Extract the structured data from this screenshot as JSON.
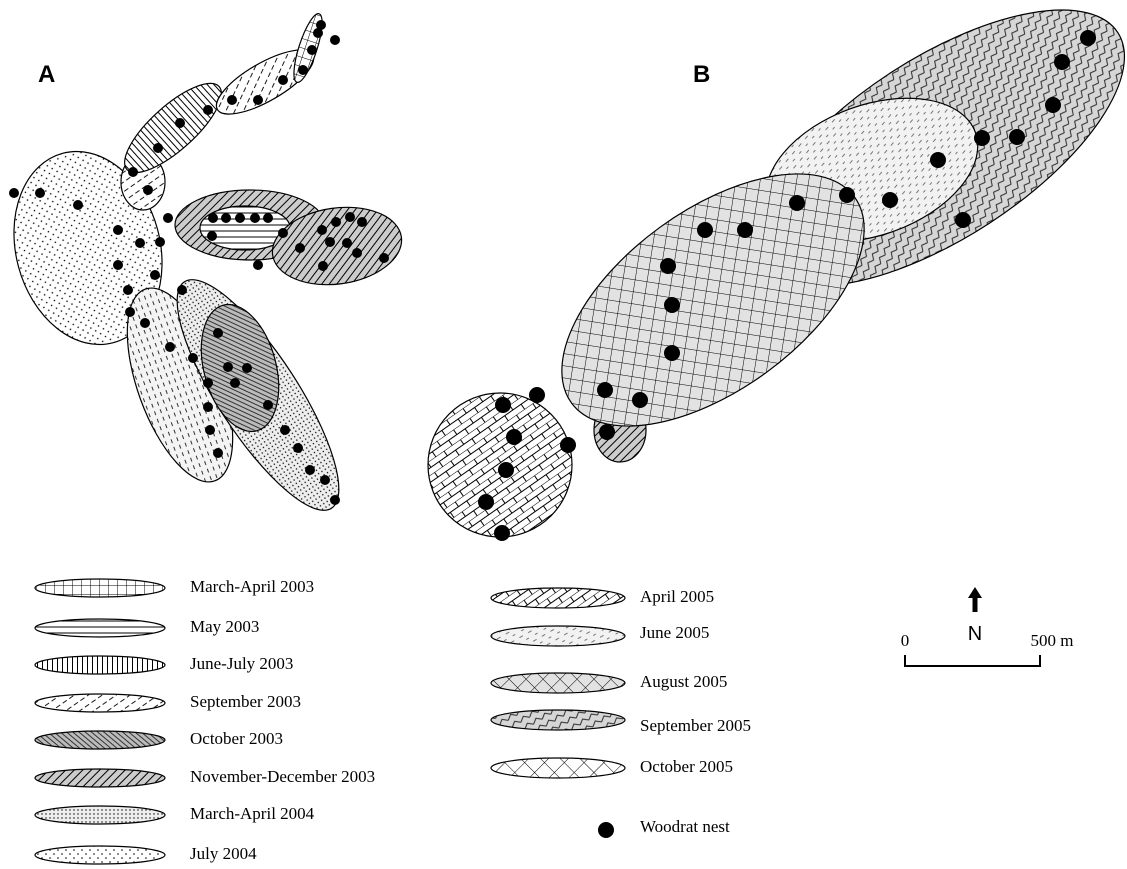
{
  "panels": {
    "a": {
      "label": "A"
    },
    "b": {
      "label": "B"
    }
  },
  "legend_a": [
    "March-April  2003",
    "May 2003",
    "June-July  2003",
    "September  2003",
    "October 2003",
    "November-December   2003",
    "March-April  2004",
    "July  2004"
  ],
  "legend_b": [
    "April  2005",
    "June  2005",
    "August  2005",
    "September  2005",
    "October  2005"
  ],
  "nest_legend": "Woodrat nest",
  "north": "N",
  "scale": {
    "start": "0",
    "end": "500 m"
  }
}
